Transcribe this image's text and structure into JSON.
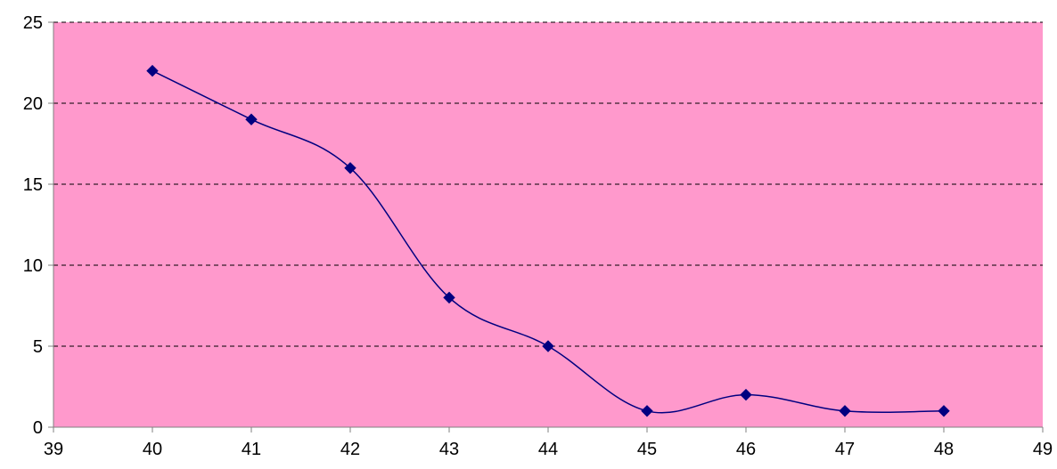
{
  "chart_data": {
    "type": "scatter",
    "style": "smoothed-line-with-markers",
    "title": "",
    "xlabel": "",
    "ylabel": "",
    "xlim": [
      39,
      49
    ],
    "ylim": [
      0,
      25
    ],
    "x_ticks": [
      "39",
      "40",
      "41",
      "42",
      "43",
      "44",
      "45",
      "46",
      "47",
      "48",
      "49"
    ],
    "y_ticks": [
      "0",
      "5",
      "10",
      "15",
      "20",
      "25"
    ],
    "grid": "horizontal-dashed",
    "legend": "none",
    "series": [
      {
        "x": [
          40,
          41,
          42,
          43,
          44,
          45,
          46,
          47,
          48
        ],
        "y": [
          22,
          19,
          16,
          8,
          5,
          1,
          2,
          1,
          1
        ]
      }
    ],
    "colors": {
      "plot_background": "#ff99cc",
      "line": "#000080",
      "marker": "#000080",
      "gridline": "#000000",
      "axis": "#808080"
    }
  }
}
